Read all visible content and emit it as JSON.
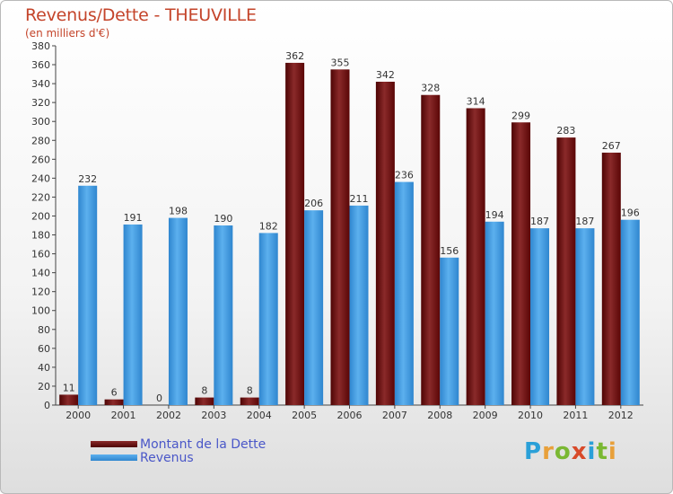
{
  "title": "Revenus/Dette - THEUVILLE",
  "subtitle": "(en milliers d'€)",
  "chart_data": {
    "type": "bar",
    "categories": [
      "2000",
      "2001",
      "2002",
      "2003",
      "2004",
      "2005",
      "2006",
      "2007",
      "2008",
      "2009",
      "2010",
      "2011",
      "2012"
    ],
    "series": [
      {
        "name": "Montant de la Dette",
        "color": "#6b0a0a",
        "values": [
          11,
          6,
          0,
          8,
          8,
          362,
          355,
          342,
          328,
          314,
          299,
          283,
          267
        ]
      },
      {
        "name": "Revenus",
        "color": "#3f9be0",
        "values": [
          232,
          191,
          198,
          190,
          182,
          206,
          211,
          236,
          156,
          194,
          187,
          187,
          196
        ]
      }
    ],
    "ylim": [
      0,
      380
    ],
    "yticks": [
      0,
      20,
      40,
      60,
      80,
      100,
      120,
      140,
      160,
      180,
      200,
      220,
      240,
      260,
      280,
      300,
      320,
      340,
      360,
      380
    ],
    "grid": false,
    "legend_position": "bottom-left"
  },
  "legend": [
    {
      "label": "Montant de la Dette",
      "color": "#6b0a0a"
    },
    {
      "label": "Revenus",
      "color": "#3f9be0"
    }
  ],
  "logo": {
    "letters": [
      "P",
      "r",
      "o",
      "x",
      "i",
      "t",
      "i"
    ],
    "colors": [
      "#2aa0d8",
      "#e8a03a",
      "#7ab833",
      "#d84a2a",
      "#2aa0d8",
      "#7ab833",
      "#e8a03a"
    ]
  }
}
